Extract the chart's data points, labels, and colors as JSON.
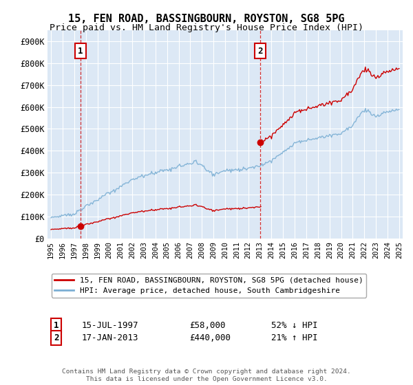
{
  "title": "15, FEN ROAD, BASSINGBOURN, ROYSTON, SG8 5PG",
  "subtitle": "Price paid vs. HM Land Registry's House Price Index (HPI)",
  "ylim": [
    0,
    950000
  ],
  "yticks": [
    0,
    100000,
    200000,
    300000,
    400000,
    500000,
    600000,
    700000,
    800000,
    900000
  ],
  "ytick_labels": [
    "£0",
    "£100K",
    "£200K",
    "£300K",
    "£400K",
    "£500K",
    "£600K",
    "£700K",
    "£800K",
    "£900K"
  ],
  "sale1_date": 1997.54,
  "sale1_price": 58000,
  "sale1_label": "1",
  "sale1_text": "15-JUL-1997",
  "sale1_price_text": "£58,000",
  "sale1_hpi_text": "52% ↓ HPI",
  "sale2_date": 2013.04,
  "sale2_price": 440000,
  "sale2_label": "2",
  "sale2_text": "17-JAN-2013",
  "sale2_price_text": "£440,000",
  "sale2_hpi_text": "21% ↑ HPI",
  "legend_line1": "15, FEN ROAD, BASSINGBOURN, ROYSTON, SG8 5PG (detached house)",
  "legend_line2": "HPI: Average price, detached house, South Cambridgeshire",
  "footer": "Contains HM Land Registry data © Crown copyright and database right 2024.\nThis data is licensed under the Open Government Licence v3.0.",
  "line_color_sold": "#cc0000",
  "line_color_hpi": "#7bafd4",
  "bg_color": "#dce8f5",
  "grid_color": "#ffffff",
  "title_fontsize": 11,
  "subtitle_fontsize": 9.5
}
